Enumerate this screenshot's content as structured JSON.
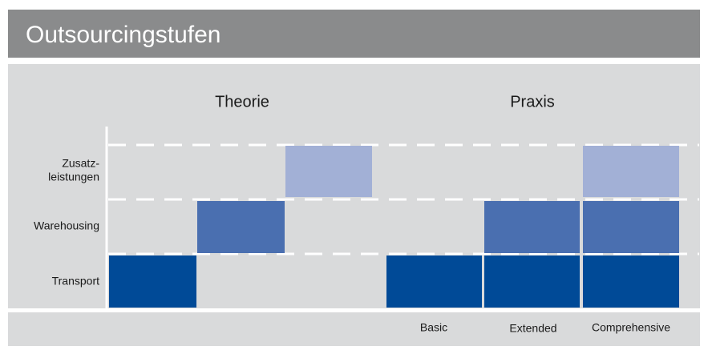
{
  "header": {
    "title": "Outsourcingstufen"
  },
  "sections": [
    "Theorie",
    "Praxis"
  ],
  "rows": [
    [
      "Zusatz-",
      "leistungen"
    ],
    [
      "Warehousing"
    ],
    [
      "Transport"
    ]
  ],
  "columns": [
    "Basic",
    "Extended",
    "Comprehensive"
  ]
}
